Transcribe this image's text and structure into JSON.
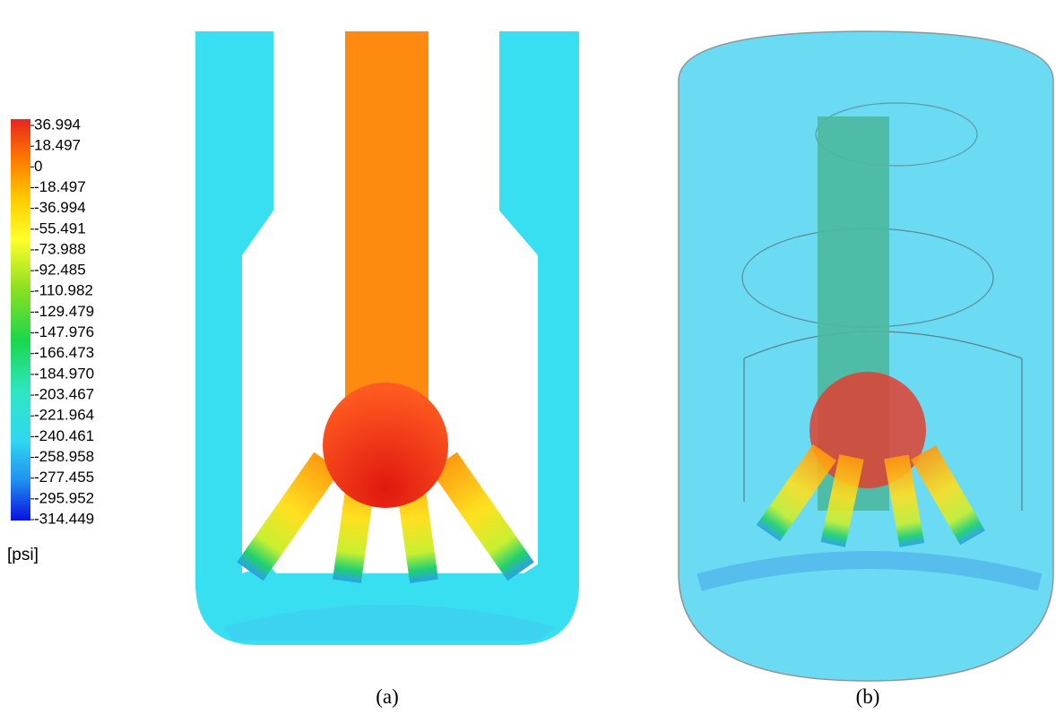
{
  "legend": {
    "ticks": [
      36.994,
      18.497,
      0,
      -18.497,
      -36.994,
      -55.491,
      -73.988,
      -92.485,
      -110.982,
      -129.479,
      -147.976,
      -166.473,
      {
        "value": -184.97,
        "label": "-184.970"
      },
      -203.467,
      -221.964,
      -240.461,
      -258.958,
      -277.455,
      -295.952,
      -314.449
    ],
    "unit": "[psi]"
  },
  "panels": [
    {
      "caption": "(a)"
    },
    {
      "caption": "(b)"
    }
  ]
}
